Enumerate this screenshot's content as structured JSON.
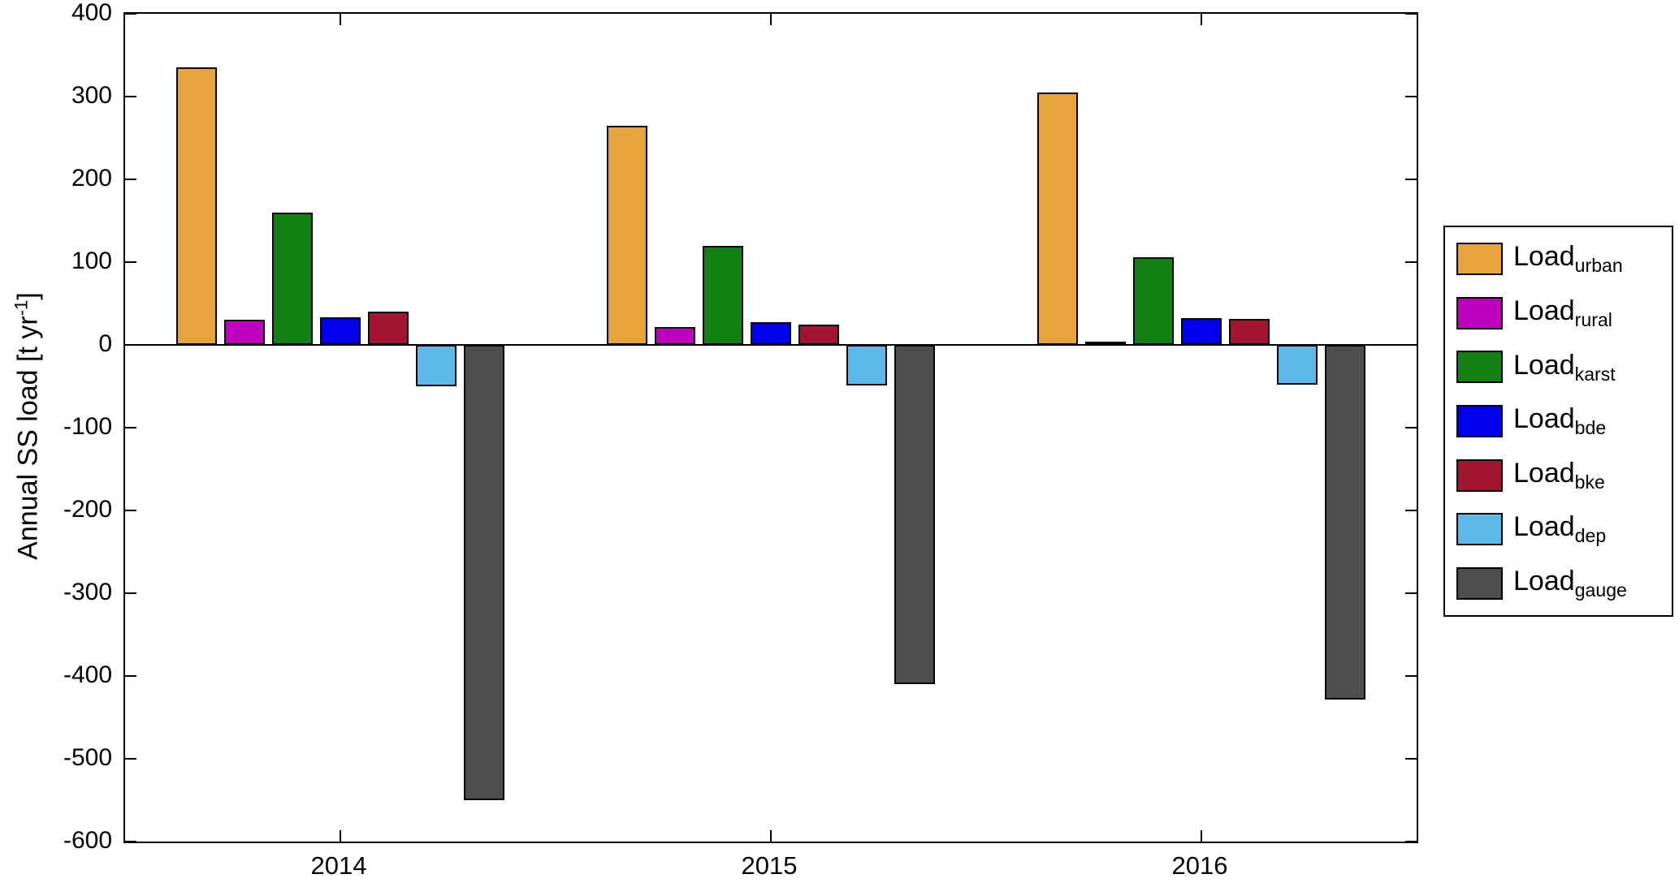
{
  "chart_data": {
    "type": "bar",
    "title": "",
    "ylabel_prefix": "Annual SS load [t yr",
    "ylabel_sup": "-1",
    "ylabel_suffix": "]",
    "categories": [
      "2014",
      "2015",
      "2016"
    ],
    "ylim": [
      -600,
      400
    ],
    "yticks": [
      400,
      300,
      200,
      100,
      0,
      -100,
      -200,
      -300,
      -400,
      -500,
      -600
    ],
    "grid": false,
    "legend_position": "right-outside",
    "background_color": "#FFFFFF",
    "axis_color": "#000000",
    "series": [
      {
        "label_main": "Load",
        "label_sub": "urban",
        "color": "#E8A33D",
        "values": [
          335,
          265,
          305
        ]
      },
      {
        "label_main": "Load",
        "label_sub": "rural",
        "color": "#BF00BF",
        "values": [
          30,
          22,
          4
        ]
      },
      {
        "label_main": "Load",
        "label_sub": "karst",
        "color": "#128012",
        "values": [
          160,
          120,
          106
        ]
      },
      {
        "label_main": "Load",
        "label_sub": "bde",
        "color": "#0000EE",
        "values": [
          33,
          27,
          32
        ]
      },
      {
        "label_main": "Load",
        "label_sub": "bke",
        "color": "#A2142F",
        "values": [
          40,
          25,
          31
        ]
      },
      {
        "label_main": "Load",
        "label_sub": "dep",
        "color": "#5CB8E8",
        "values": [
          -50,
          -49,
          -48
        ]
      },
      {
        "label_main": "Load",
        "label_sub": "gauge",
        "color": "#4D4D4D",
        "values": [
          -550,
          -410,
          -428
        ]
      }
    ]
  }
}
